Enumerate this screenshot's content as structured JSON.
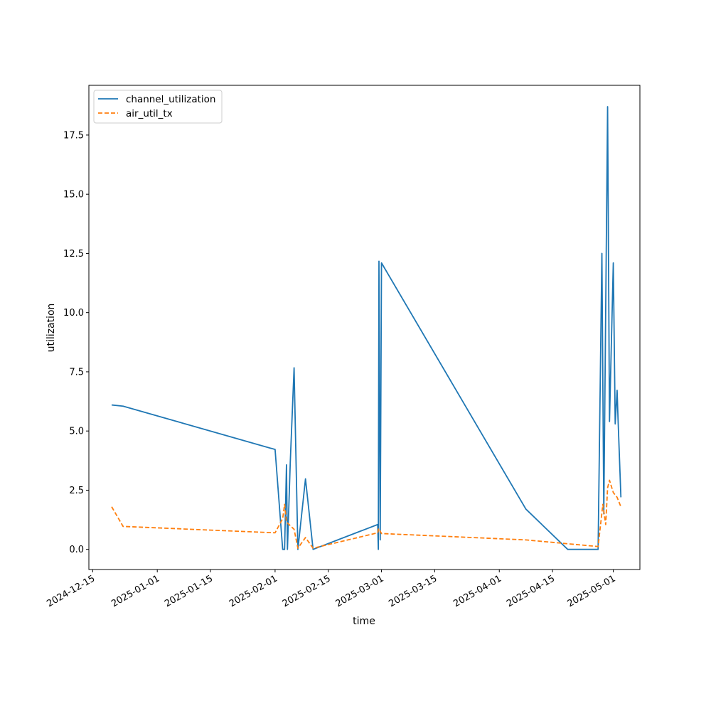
{
  "chart_data": {
    "type": "line",
    "title": "",
    "xlabel": "time",
    "ylabel": "utilization",
    "xlim": [
      "2024-12-14",
      "2025-05-08"
    ],
    "ylim": [
      -0.85,
      19.6
    ],
    "x_ticks": [
      "2024-12-15",
      "2025-01-01",
      "2025-01-15",
      "2025-02-01",
      "2025-02-15",
      "2025-03-01",
      "2025-03-15",
      "2025-04-01",
      "2025-04-15",
      "2025-05-01"
    ],
    "y_ticks": [
      "0.0",
      "2.5",
      "5.0",
      "7.5",
      "10.0",
      "12.5",
      "15.0",
      "17.5"
    ],
    "legend_position": "top-left",
    "grid": false,
    "series": [
      {
        "name": "channel_utilization",
        "color": "#1f77b4",
        "dash": "solid",
        "points": [
          [
            "2024-12-20",
            6.1
          ],
          [
            "2024-12-23",
            6.05
          ],
          [
            "2025-02-01",
            4.22
          ],
          [
            "2025-02-03",
            0.0
          ],
          [
            "2025-02-03 12:00",
            0.0
          ],
          [
            "2025-02-04",
            3.57
          ],
          [
            "2025-02-04 06:00",
            0.0
          ],
          [
            "2025-02-05",
            3.7
          ],
          [
            "2025-02-06",
            7.67
          ],
          [
            "2025-02-07",
            0.0
          ],
          [
            "2025-02-09",
            2.98
          ],
          [
            "2025-02-11",
            0.0
          ],
          [
            "2025-02-28",
            1.05
          ],
          [
            "2025-02-28 04:00",
            0.0
          ],
          [
            "2025-02-28 08:00",
            12.17
          ],
          [
            "2025-02-28 16:00",
            0.4
          ],
          [
            "2025-03-01",
            12.1
          ],
          [
            "2025-04-08",
            1.7
          ],
          [
            "2025-04-19",
            0.0
          ],
          [
            "2025-04-27",
            0.0
          ],
          [
            "2025-04-28",
            12.5
          ],
          [
            "2025-04-28 12:00",
            1.5
          ],
          [
            "2025-04-29 12:00",
            18.7
          ],
          [
            "2025-04-30",
            5.4
          ],
          [
            "2025-05-01",
            12.1
          ],
          [
            "2025-05-01 12:00",
            5.3
          ],
          [
            "2025-05-02",
            6.72
          ],
          [
            "2025-05-02 06:00",
            5.5
          ],
          [
            "2025-05-03",
            2.2
          ]
        ]
      },
      {
        "name": "air_util_tx",
        "color": "#ff7f0e",
        "dash": "dashed",
        "points": [
          [
            "2024-12-20",
            1.8
          ],
          [
            "2024-12-23",
            0.97
          ],
          [
            "2025-02-01",
            0.7
          ],
          [
            "2025-02-03",
            1.3
          ],
          [
            "2025-02-03 12:00",
            1.9
          ],
          [
            "2025-02-04",
            1.15
          ],
          [
            "2025-02-06",
            0.85
          ],
          [
            "2025-02-07",
            0.05
          ],
          [
            "2025-02-09",
            0.5
          ],
          [
            "2025-02-11",
            0.05
          ],
          [
            "2025-02-28",
            0.7
          ],
          [
            "2025-02-28 06:00",
            0.88
          ],
          [
            "2025-03-01",
            0.67
          ],
          [
            "2025-04-08",
            0.4
          ],
          [
            "2025-04-27",
            0.12
          ],
          [
            "2025-04-28 06:00",
            1.9
          ],
          [
            "2025-04-29",
            1.05
          ],
          [
            "2025-04-29 12:00",
            2.6
          ],
          [
            "2025-04-30",
            2.92
          ],
          [
            "2025-05-01",
            2.4
          ],
          [
            "2025-05-02",
            2.2
          ],
          [
            "2025-05-03",
            1.8
          ]
        ]
      }
    ]
  }
}
